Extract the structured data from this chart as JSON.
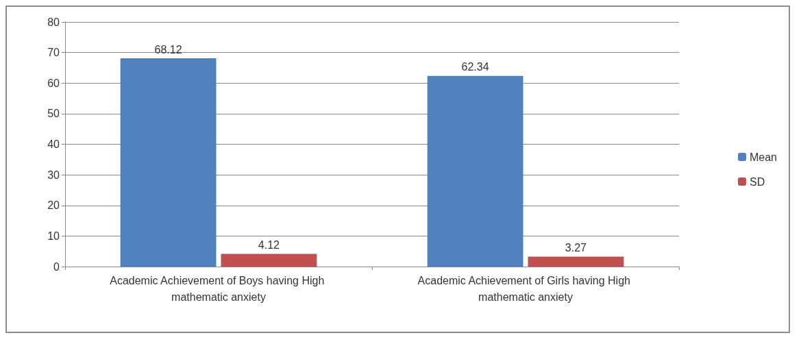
{
  "chart_data": {
    "type": "bar",
    "categories": [
      "Academic Achievement of Boys having High mathematic anxiety",
      "Academic Achievement of Girls having High mathematic anxiety"
    ],
    "series": [
      {
        "name": "Mean",
        "color": "#4f81bd",
        "values": [
          68.12,
          62.34
        ]
      },
      {
        "name": "SD",
        "color": "#c0504d",
        "values": [
          4.12,
          3.27
        ]
      }
    ],
    "ylim": [
      0,
      80
    ],
    "yticks": [
      0,
      10,
      20,
      30,
      40,
      50,
      60,
      70,
      80
    ],
    "grid": "y",
    "legend": "right",
    "data_labels": true
  }
}
